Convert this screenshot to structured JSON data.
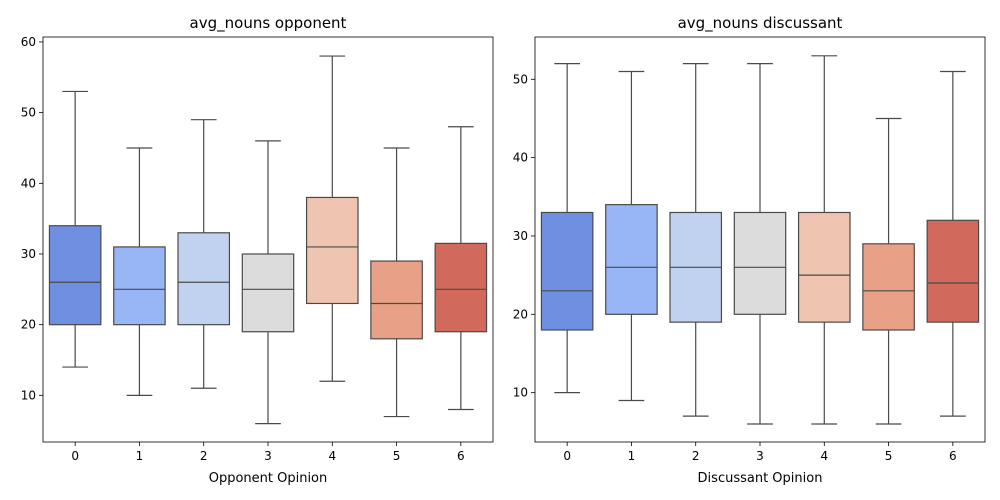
{
  "chart_data": [
    {
      "type": "box",
      "title": "avg_nouns opponent",
      "xlabel": "Opponent Opinion",
      "ylabel": "",
      "ylim": [
        3.4,
        60.7
      ],
      "yticks": [
        10,
        20,
        30,
        40,
        50,
        60
      ],
      "categories": [
        "0",
        "1",
        "2",
        "3",
        "4",
        "5",
        "6"
      ],
      "colors": [
        "#6f8fe0",
        "#98b5f5",
        "#c0d2f0",
        "#dcdcdc",
        "#efc4b1",
        "#e8a186",
        "#d16a5c"
      ],
      "boxes": [
        {
          "min": 14,
          "q1": 20,
          "median": 26,
          "q3": 34,
          "max": 53
        },
        {
          "min": 10,
          "q1": 20,
          "median": 25,
          "q3": 31,
          "max": 45
        },
        {
          "min": 11,
          "q1": 20,
          "median": 26,
          "q3": 33,
          "max": 49
        },
        {
          "min": 6,
          "q1": 19,
          "median": 25,
          "q3": 30,
          "max": 46
        },
        {
          "min": 12,
          "q1": 23,
          "median": 31,
          "q3": 38,
          "max": 58
        },
        {
          "min": 7,
          "q1": 18,
          "median": 23,
          "q3": 29,
          "max": 45
        },
        {
          "min": 8,
          "q1": 19,
          "median": 25,
          "q3": 31.5,
          "max": 48
        }
      ]
    },
    {
      "type": "box",
      "title": "avg_nouns discussant",
      "xlabel": "Discussant Opinion",
      "ylabel": "",
      "ylim": [
        3.7,
        55.4
      ],
      "yticks": [
        10,
        20,
        30,
        40,
        50
      ],
      "categories": [
        "0",
        "1",
        "2",
        "3",
        "4",
        "5",
        "6"
      ],
      "colors": [
        "#6f8fe0",
        "#98b5f5",
        "#c0d2f0",
        "#dcdcdc",
        "#efc4b1",
        "#e8a186",
        "#d16a5c"
      ],
      "boxes": [
        {
          "min": 10,
          "q1": 18,
          "median": 23,
          "q3": 33,
          "max": 52
        },
        {
          "min": 9,
          "q1": 20,
          "median": 26,
          "q3": 34,
          "max": 51
        },
        {
          "min": 7,
          "q1": 19,
          "median": 26,
          "q3": 33,
          "max": 52
        },
        {
          "min": 6,
          "q1": 20,
          "median": 26,
          "q3": 33,
          "max": 52
        },
        {
          "min": 6,
          "q1": 19,
          "median": 25,
          "q3": 33,
          "max": 53
        },
        {
          "min": 6,
          "q1": 18,
          "median": 23,
          "q3": 29,
          "max": 45
        },
        {
          "min": 7,
          "q1": 19,
          "median": 24,
          "q3": 32,
          "max": 51
        }
      ]
    }
  ]
}
